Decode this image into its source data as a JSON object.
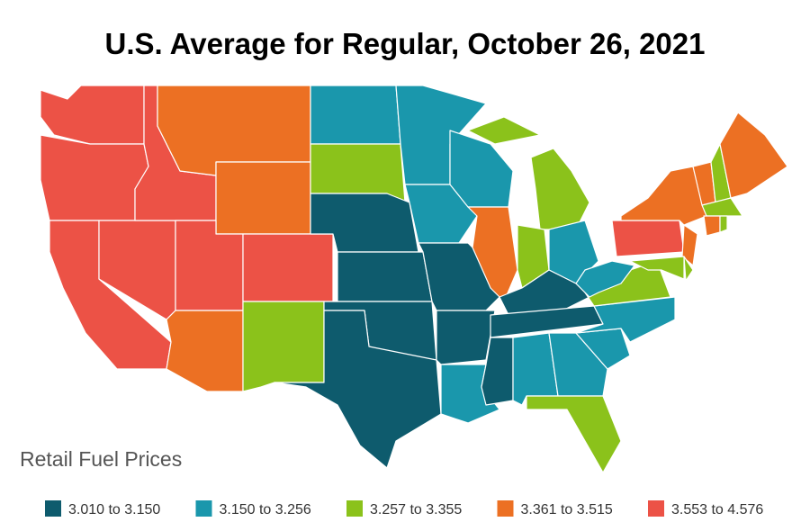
{
  "title": "U.S. Average for Regular, October 26, 2021",
  "legend_title": "Retail Fuel Prices",
  "bins": [
    {
      "label": "3.010 to 3.150",
      "color": "#0e5b6d"
    },
    {
      "label": "3.150 to 3.256",
      "color": "#1a97ac"
    },
    {
      "label": "3.257 to 3.355",
      "color": "#8bc21b"
    },
    {
      "label": "3.361 to 3.515",
      "color": "#ec7023"
    },
    {
      "label": "3.553 to 4.576",
      "color": "#ec5246"
    }
  ]
}
